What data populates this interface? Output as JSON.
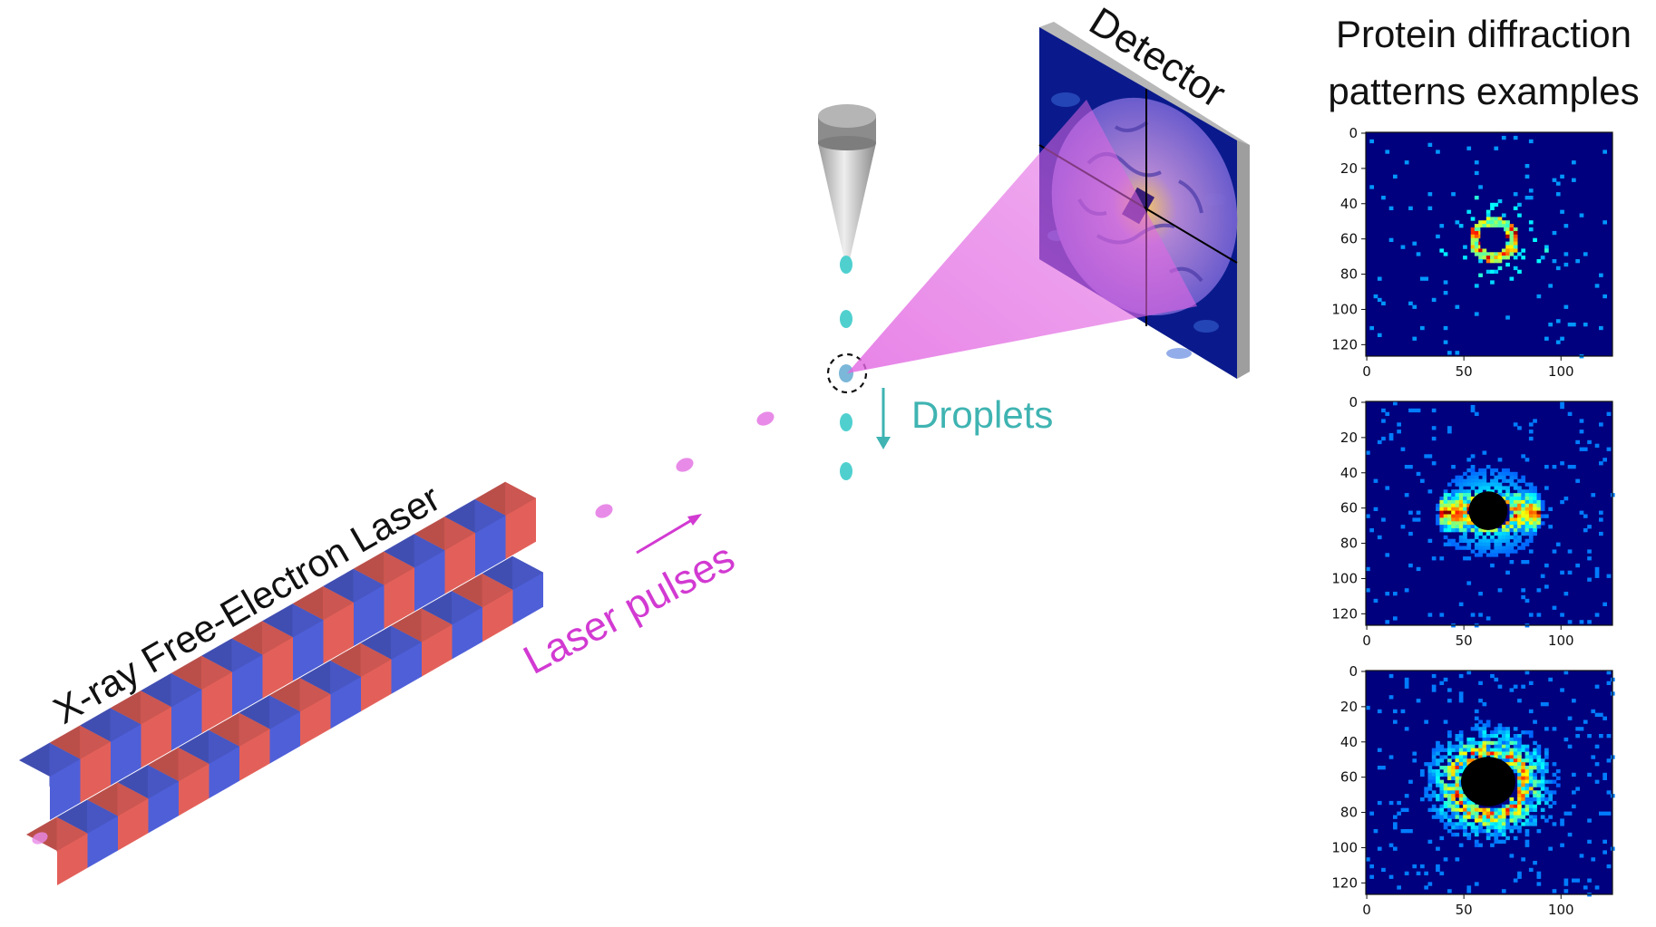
{
  "labels": {
    "detector": "Detector",
    "droplets": "Droplets",
    "laser_pulses": "Laser pulses",
    "xfel": "X-ray Free-Electron Laser"
  },
  "panel_title": [
    "Protein diffraction",
    "patterns examples"
  ],
  "colors": {
    "magnet_red": "#e3605a",
    "magnet_blue": "#4f5fd8",
    "droplet": "#4fd0cf",
    "beam": "#e266e2",
    "droplet_label": "#3fb4b2",
    "pulse_label": "#d23ad2",
    "heatmap_bg": "#00007f"
  },
  "chart_data": [
    {
      "type": "heatmap",
      "title": "",
      "xlim": [
        0,
        127
      ],
      "ylim": [
        127,
        0
      ],
      "xticks": [
        "0",
        "50",
        "100"
      ],
      "yticks": [
        "0",
        "20",
        "40",
        "60",
        "80",
        "100",
        "120"
      ],
      "colormap": "jet",
      "pattern": "small ring of bright speckles around center (~x 65, y 60)"
    },
    {
      "type": "heatmap",
      "title": "",
      "xlim": [
        0,
        127
      ],
      "ylim": [
        127,
        0
      ],
      "xticks": [
        "0",
        "50",
        "100"
      ],
      "yticks": [
        "0",
        "20",
        "40",
        "60",
        "80",
        "100",
        "120"
      ],
      "colormap": "jet",
      "pattern": "two bright lobes left and right of center (~x 45 and x 80, y 62)"
    },
    {
      "type": "heatmap",
      "title": "",
      "xlim": [
        0,
        127
      ],
      "ylim": [
        127,
        0
      ],
      "xticks": [
        "0",
        "50",
        "100"
      ],
      "yticks": [
        "0",
        "20",
        "40",
        "60",
        "80",
        "100",
        "120"
      ],
      "colormap": "jet",
      "pattern": "broad speckled ring around a dark center disk (~x 63, y 63)"
    }
  ]
}
